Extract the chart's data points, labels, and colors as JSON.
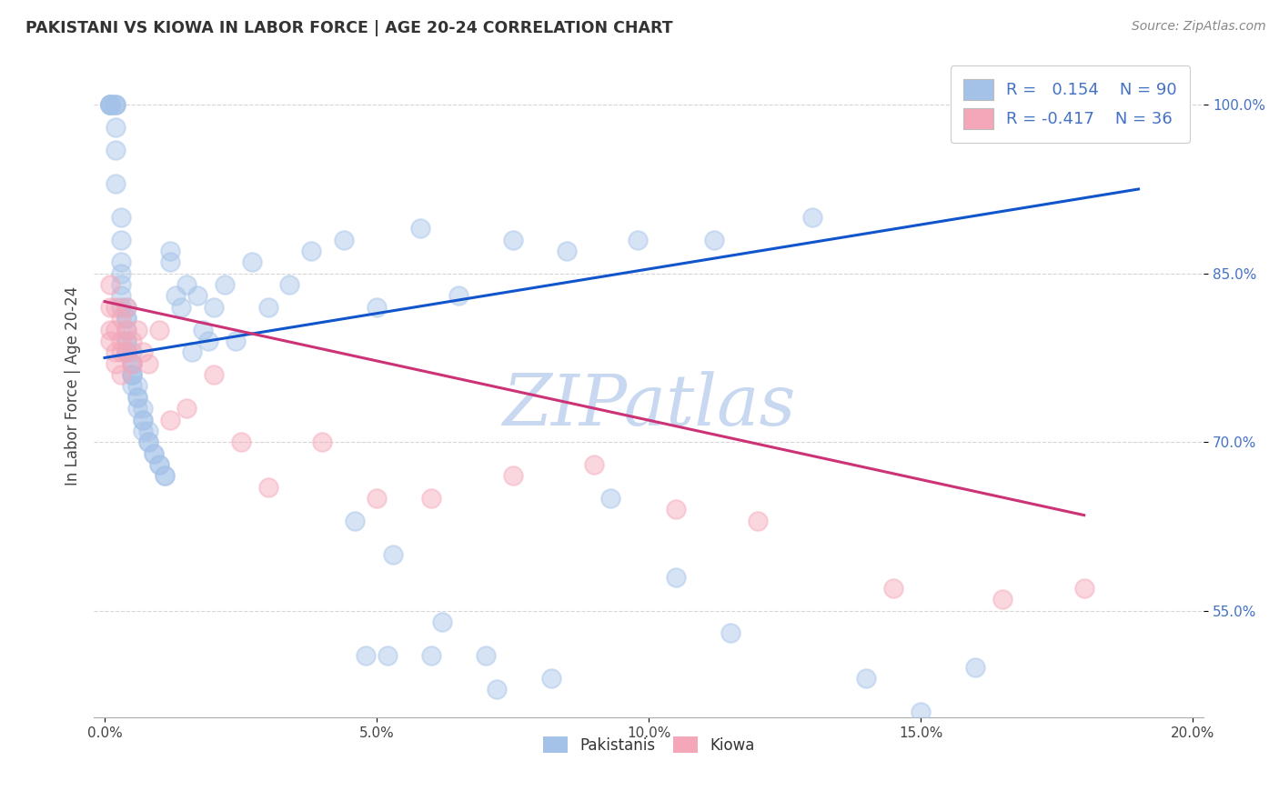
{
  "title": "PAKISTANI VS KIOWA IN LABOR FORCE | AGE 20-24 CORRELATION CHART",
  "source_text": "Source: ZipAtlas.com",
  "ylabel": "In Labor Force | Age 20-24",
  "xlim": [
    -0.002,
    0.202
  ],
  "ylim": [
    0.455,
    1.045
  ],
  "xtick_labels": [
    "0.0%",
    "5.0%",
    "10.0%",
    "15.0%",
    "20.0%"
  ],
  "xtick_vals": [
    0.0,
    0.05,
    0.1,
    0.15,
    0.2
  ],
  "ytick_labels": [
    "55.0%",
    "70.0%",
    "85.0%",
    "100.0%"
  ],
  "ytick_vals": [
    0.55,
    0.7,
    0.85,
    1.0
  ],
  "blue_color": "#a4c2e8",
  "pink_color": "#f4a7b9",
  "blue_line_color": "#1155cc",
  "pink_line_color": "#cc3377",
  "legend_R_blue": "0.154",
  "legend_N_blue": "90",
  "legend_R_pink": "-0.417",
  "legend_N_pink": "36",
  "watermark": "ZIPatlas",
  "watermark_color": "#c8d8f0",
  "background_color": "#ffffff",
  "grid_color": "#cccccc",
  "blue_line_x0": 0.0,
  "blue_line_y0": 0.775,
  "blue_line_x1": 0.19,
  "blue_line_y1": 0.925,
  "pink_line_x0": 0.0,
  "pink_line_y0": 0.825,
  "pink_line_x1": 0.18,
  "pink_line_y1": 0.635,
  "pakistanis_x": [
    0.001,
    0.001,
    0.001,
    0.001,
    0.001,
    0.002,
    0.002,
    0.002,
    0.002,
    0.002,
    0.002,
    0.003,
    0.003,
    0.003,
    0.003,
    0.003,
    0.003,
    0.003,
    0.004,
    0.004,
    0.004,
    0.004,
    0.004,
    0.004,
    0.004,
    0.004,
    0.005,
    0.005,
    0.005,
    0.005,
    0.005,
    0.005,
    0.005,
    0.006,
    0.006,
    0.006,
    0.006,
    0.007,
    0.007,
    0.007,
    0.007,
    0.008,
    0.008,
    0.008,
    0.009,
    0.009,
    0.01,
    0.01,
    0.011,
    0.011,
    0.012,
    0.012,
    0.013,
    0.014,
    0.015,
    0.016,
    0.017,
    0.018,
    0.019,
    0.02,
    0.022,
    0.024,
    0.027,
    0.03,
    0.034,
    0.038,
    0.044,
    0.05,
    0.058,
    0.065,
    0.075,
    0.085,
    0.098,
    0.112,
    0.13,
    0.048,
    0.052,
    0.06,
    0.072,
    0.082,
    0.093,
    0.105,
    0.115,
    0.14,
    0.16,
    0.046,
    0.053,
    0.062,
    0.07,
    0.15
  ],
  "pakistanis_y": [
    1.0,
    1.0,
    1.0,
    1.0,
    1.0,
    1.0,
    1.0,
    1.0,
    0.98,
    0.96,
    0.93,
    0.9,
    0.88,
    0.86,
    0.85,
    0.84,
    0.83,
    0.82,
    0.82,
    0.81,
    0.81,
    0.8,
    0.79,
    0.79,
    0.78,
    0.78,
    0.78,
    0.77,
    0.77,
    0.76,
    0.76,
    0.76,
    0.75,
    0.75,
    0.74,
    0.74,
    0.73,
    0.73,
    0.72,
    0.72,
    0.71,
    0.71,
    0.7,
    0.7,
    0.69,
    0.69,
    0.68,
    0.68,
    0.67,
    0.67,
    0.87,
    0.86,
    0.83,
    0.82,
    0.84,
    0.78,
    0.83,
    0.8,
    0.79,
    0.82,
    0.84,
    0.79,
    0.86,
    0.82,
    0.84,
    0.87,
    0.88,
    0.82,
    0.89,
    0.83,
    0.88,
    0.87,
    0.88,
    0.88,
    0.9,
    0.51,
    0.51,
    0.51,
    0.48,
    0.49,
    0.65,
    0.58,
    0.53,
    0.49,
    0.5,
    0.63,
    0.6,
    0.54,
    0.51,
    0.46
  ],
  "kiowa_x": [
    0.001,
    0.001,
    0.001,
    0.001,
    0.002,
    0.002,
    0.002,
    0.002,
    0.003,
    0.003,
    0.003,
    0.003,
    0.004,
    0.004,
    0.004,
    0.005,
    0.005,
    0.006,
    0.007,
    0.008,
    0.01,
    0.012,
    0.015,
    0.02,
    0.025,
    0.03,
    0.04,
    0.05,
    0.06,
    0.075,
    0.09,
    0.105,
    0.12,
    0.145,
    0.165,
    0.18
  ],
  "kiowa_y": [
    0.84,
    0.82,
    0.8,
    0.79,
    0.82,
    0.8,
    0.78,
    0.77,
    0.81,
    0.79,
    0.78,
    0.76,
    0.82,
    0.8,
    0.78,
    0.79,
    0.77,
    0.8,
    0.78,
    0.77,
    0.8,
    0.72,
    0.73,
    0.76,
    0.7,
    0.66,
    0.7,
    0.65,
    0.65,
    0.67,
    0.68,
    0.64,
    0.63,
    0.57,
    0.56,
    0.57
  ]
}
